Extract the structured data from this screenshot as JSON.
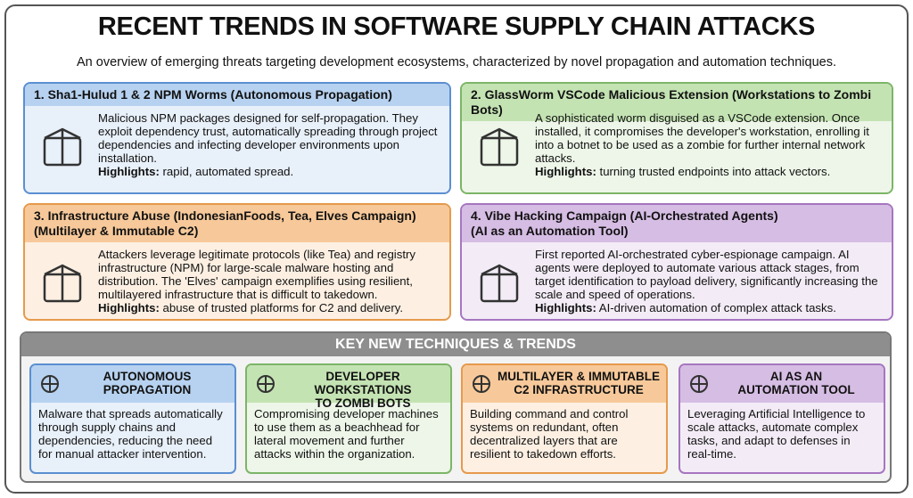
{
  "header": {
    "title": "RECENT TRENDS IN SOFTWARE SUPPLY CHAIN ATTACKS",
    "subtitle": "An overview of emerging threats targeting development ecosystems, characterized by novel propagation and automation techniques."
  },
  "cards": [
    {
      "title": [
        "1. Sha1-Hulud 1 & 2 NPM Worms (Autonomous Propagation)"
      ],
      "body": "Malicious NPM packages designed for self-propagation. They exploit dependency trust, automatically spreading through project dependencies and infecting developer environments upon installation.",
      "highlight_label": "Highlights:",
      "highlight": "rapid, automated spread."
    },
    {
      "title": [
        "2. GlassWorm VSCode Malicious Extension (Workstations to Zombi Bots)"
      ],
      "body": "A sophisticated worm disguised as a VSCode extension. Once installed, it compromises the developer's workstation, enrolling it into a botnet to be used as a zombie for further internal network attacks.",
      "highlight_label": "Highlights:",
      "highlight": "turning trusted endpoints into attack vectors."
    },
    {
      "title": [
        "3. Infrastructure Abuse (IndonesianFoods, Tea, Elves Campaign)",
        "(Multilayer & Immutable C2)"
      ],
      "body": "Attackers leverage legitimate protocols (like Tea) and registry infrastructure (NPM) for large-scale malware hosting and distribution. The 'Elves' campaign exemplifies using resilient, multilayered infrastructure that is difficult to takedown.",
      "highlight_label": "Highlights:",
      "highlight": "abuse of trusted platforms for C2 and delivery."
    },
    {
      "title": [
        "4. Vibe Hacking Campaign (AI-Orchestrated Agents)",
        "(AI as an Automation Tool)"
      ],
      "body": "First reported AI-orchestrated cyber-espionage campaign. AI agents were deployed to automate various attack stages, from target identification to payload delivery, significantly increasing the scale and speed of operations.",
      "highlight_label": "Highlights:",
      "highlight": "AI-driven automation of complex attack tasks."
    }
  ],
  "key_section": {
    "title": "KEY NEW TECHNIQUES & TRENDS",
    "items": [
      {
        "title": [
          "AUTONOMOUS",
          "PROPAGATION"
        ],
        "body": "Malware that spreads automatically through supply chains and dependencies, reducing the need for manual attacker intervention."
      },
      {
        "title": [
          "DEVELOPER WORKSTATIONS",
          "TO ZOMBI BOTS"
        ],
        "body": "Compromising developer machines to use them as a beachhead for lateral movement and further attacks within the organization."
      },
      {
        "title": [
          "MULTILAYER & IMMUTABLE",
          "C2 INFRASTRUCTURE"
        ],
        "body": "Building command and control systems on redundant, often decentralized layers that are resilient to takedown efforts."
      },
      {
        "title": [
          "AI AS AN",
          "AUTOMATION TOOL"
        ],
        "body": "Leveraging Artificial Intelligence to scale attacks, automate complex tasks, and adapt to defenses in real-time."
      }
    ]
  }
}
